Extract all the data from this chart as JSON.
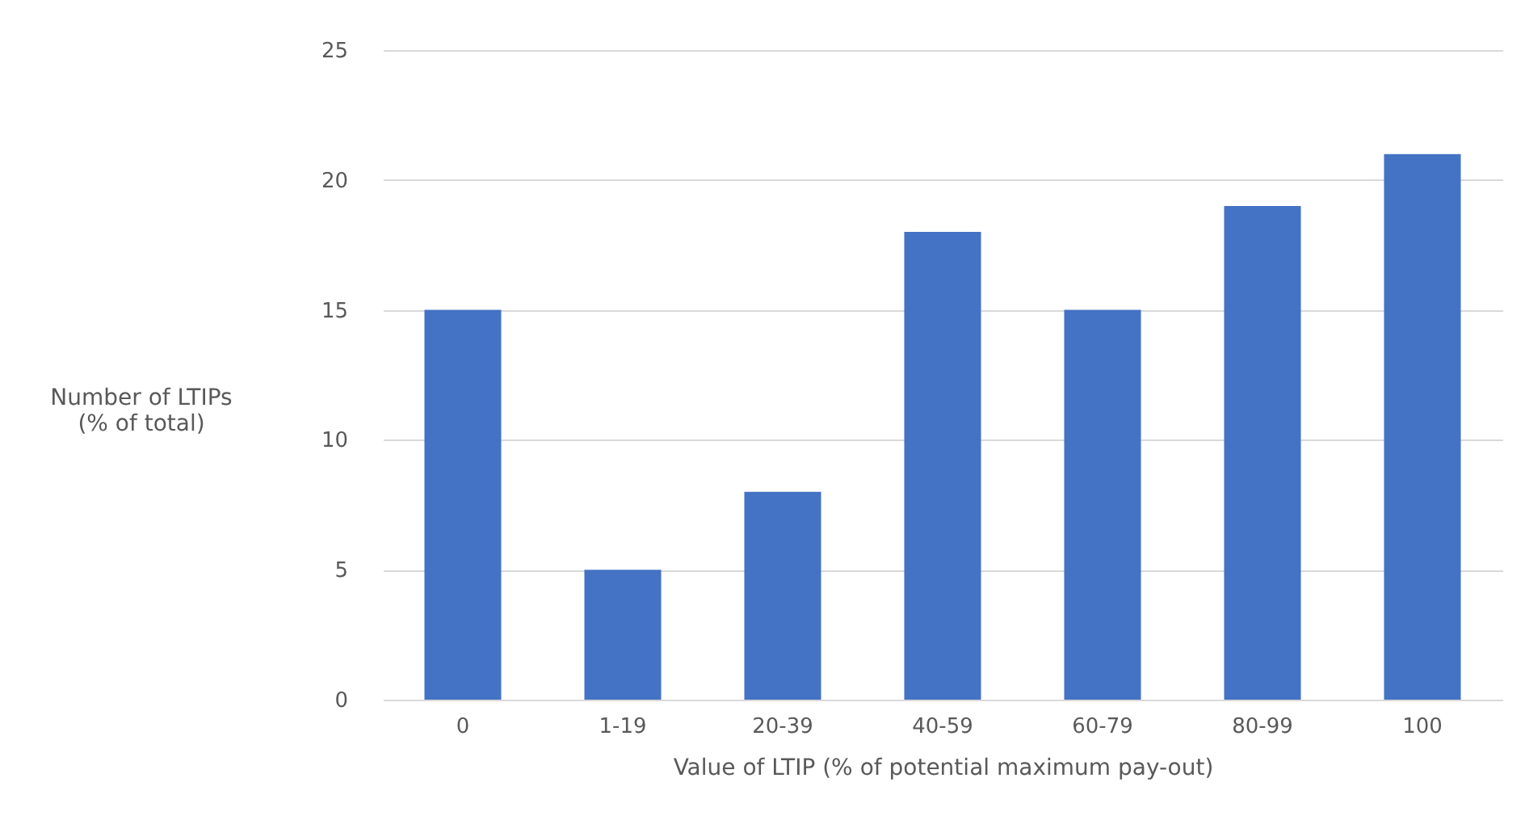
{
  "chart_data": {
    "type": "bar",
    "xlabel": "Value of LTIP (% of potential maximum pay-out)",
    "ylabel": "Number of LTIPs (% of total)",
    "categories": [
      "0",
      "1-19",
      "20-39",
      "40-59",
      "60-79",
      "80-99",
      "100"
    ],
    "values": [
      15,
      5,
      8,
      18,
      15,
      19,
      21
    ],
    "color": "#4472c4",
    "ylim": [
      0,
      25
    ],
    "yticks": [
      0,
      5,
      10,
      15,
      20,
      25
    ],
    "grid": "y"
  }
}
